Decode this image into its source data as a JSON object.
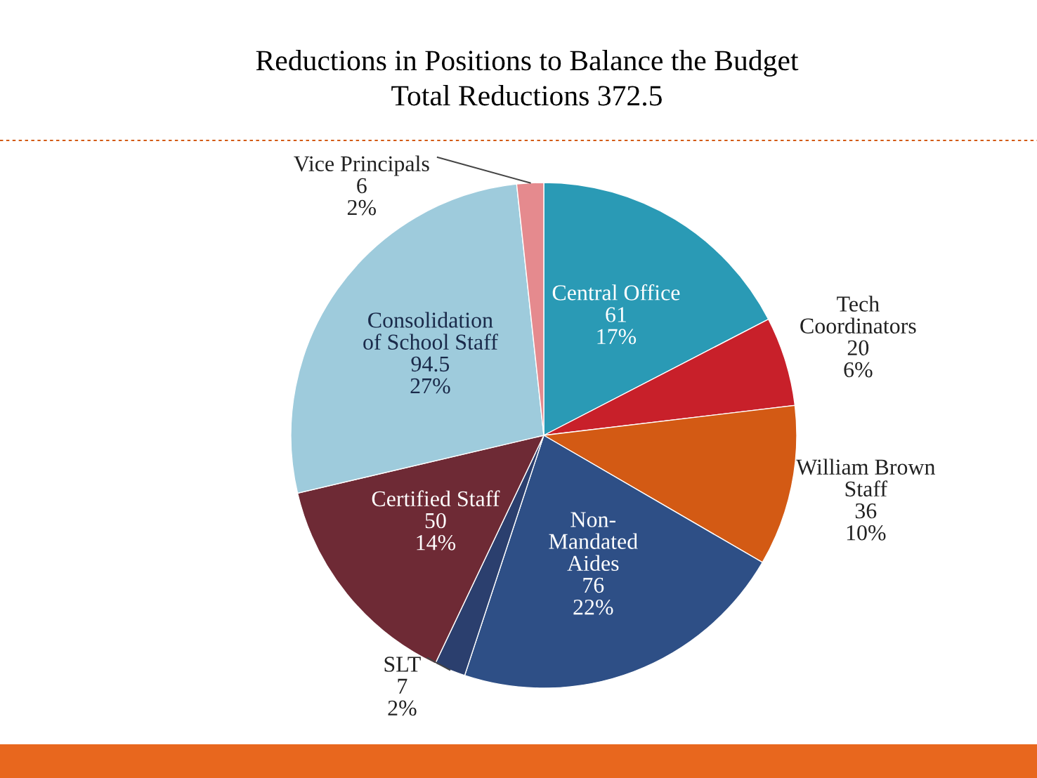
{
  "chart_data": {
    "type": "pie",
    "title": "Reductions in Positions to Balance the Budget",
    "subtitle": "Total Reductions 372.5",
    "categories": [
      "Central Office",
      "Tech\nCoordinators",
      "William Brown\nStaff",
      "Non-\nMandated\nAides",
      "SLT",
      "Certified Staff",
      "Consolidation\nof School Staff",
      "Vice Principals"
    ],
    "values": [
      61,
      20,
      36,
      76,
      7,
      50,
      94.5,
      6
    ],
    "value_labels": [
      "61\n17%",
      "20\n6%",
      "36\n10%",
      "76\n22%",
      "7\n2%",
      "50\n14%",
      "94.5\n27%",
      "6\n2%"
    ],
    "colors": [
      "#2a9ab5",
      "#c8202a",
      "#d35a14",
      "#2e4f86",
      "#2b3f6e",
      "#6e2a35",
      "#9ecbdc",
      "#e58a8e"
    ]
  }
}
